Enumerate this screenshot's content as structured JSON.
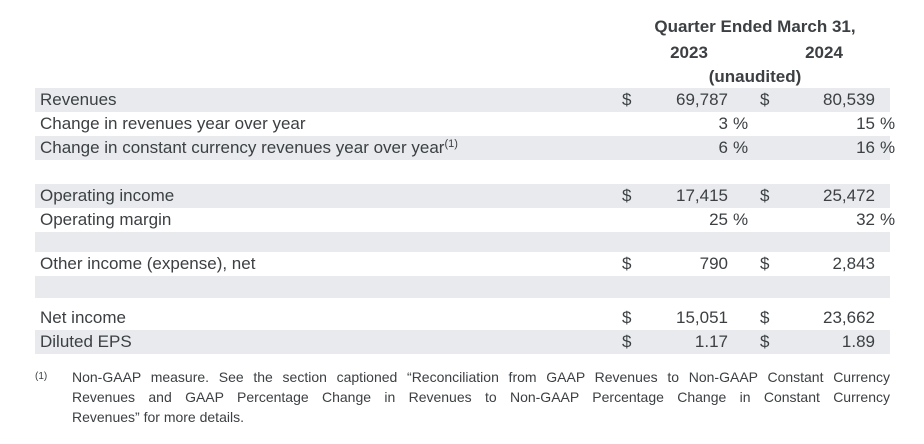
{
  "header": {
    "title": "Quarter Ended March 31,",
    "col_2023": "2023",
    "col_2024": "2024",
    "unaudited": "(unaudited)"
  },
  "table": {
    "rows": [
      {
        "label": "Revenues",
        "d1": "$",
        "v1": "69,787",
        "d2": "$",
        "v2": "80,539"
      },
      {
        "label": "Change in revenues year over year",
        "v1": "3",
        "p1": "%",
        "v2": "15",
        "p2": "%"
      },
      {
        "label": "Change in constant currency revenues year over year",
        "sup": "(1)",
        "v1": "6",
        "p1": "%",
        "v2": "16",
        "p2": "%"
      },
      {
        "label": "Operating income",
        "d1": "$",
        "v1": "17,415",
        "d2": "$",
        "v2": "25,472"
      },
      {
        "label": "Operating margin",
        "v1": "25",
        "p1": "%",
        "v2": "32",
        "p2": "%"
      },
      {
        "label": "Other income (expense), net",
        "d1": "$",
        "v1": "790",
        "d2": "$",
        "v2": "2,843"
      },
      {
        "label": "Net income",
        "d1": "$",
        "v1": "15,051",
        "d2": "$",
        "v2": "23,662"
      },
      {
        "label": "Diluted EPS",
        "d1": "$",
        "v1": "1.17",
        "d2": "$",
        "v2": "1.89"
      }
    ]
  },
  "footnote": {
    "marker": "(1)",
    "lines": [
      "Non-GAAP measure. See the section captioned “Reconciliation from GAAP Revenues to Non-GAAP Constant Currency",
      "Revenues and GAAP Percentage Change in Revenues to Non-GAAP Percentage Change in Constant Currency",
      "Revenues” for more details."
    ]
  },
  "colors": {
    "text": "#3c4043",
    "row_shade": "#e8eaed",
    "background": "#ffffff"
  }
}
